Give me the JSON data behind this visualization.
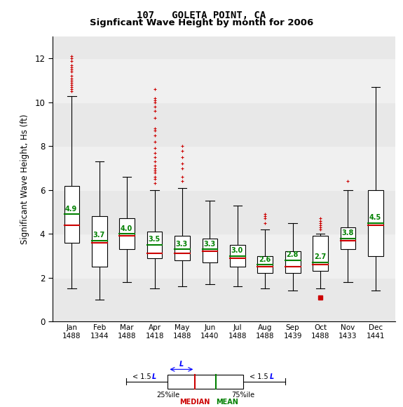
{
  "title1": "107   GOLETA POINT, CA",
  "title2": "Signficant Wave Height by month for 2006",
  "ylabel": "Significant Wave Height, Hs (ft)",
  "months": [
    "Jan",
    "Feb",
    "Mar",
    "Apr",
    "May",
    "Jun",
    "Jul",
    "Aug",
    "Sep",
    "Oct",
    "Nov",
    "Dec"
  ],
  "counts": [
    1488,
    1344,
    1488,
    1418,
    1488,
    1440,
    1488,
    1488,
    1439,
    1488,
    1433,
    1441
  ],
  "ylim": [
    0,
    13
  ],
  "yticks": [
    0,
    2,
    4,
    6,
    8,
    10,
    12
  ],
  "box_data": {
    "Jan": {
      "q1": 3.6,
      "median": 4.4,
      "mean": 4.9,
      "q3": 6.2,
      "whislo": 1.5,
      "whishi": 10.3,
      "fliers_above": [
        10.5,
        10.6,
        10.7,
        10.8,
        10.9,
        11.0,
        11.1,
        11.2,
        11.4,
        11.5,
        11.6,
        11.7,
        11.9,
        12.0,
        12.1
      ],
      "fliers_below": []
    },
    "Feb": {
      "q1": 2.5,
      "median": 3.6,
      "mean": 3.7,
      "q3": 4.8,
      "whislo": 1.0,
      "whishi": 7.3,
      "fliers_above": [],
      "fliers_below": []
    },
    "Mar": {
      "q1": 3.3,
      "median": 3.9,
      "mean": 4.0,
      "q3": 4.7,
      "whislo": 1.8,
      "whishi": 6.6,
      "fliers_above": [],
      "fliers_below": []
    },
    "Apr": {
      "q1": 2.9,
      "median": 3.1,
      "mean": 3.5,
      "q3": 4.1,
      "whislo": 1.5,
      "whishi": 6.0,
      "fliers_above": [
        6.3,
        6.5,
        6.6,
        6.8,
        6.9,
        7.0,
        7.1,
        7.3,
        7.5,
        7.7,
        7.9,
        8.2,
        8.5,
        8.7,
        8.8,
        9.3,
        9.6,
        9.8,
        10.0,
        10.1,
        10.2,
        10.6
      ],
      "fliers_below": []
    },
    "May": {
      "q1": 2.8,
      "median": 3.1,
      "mean": 3.3,
      "q3": 3.9,
      "whislo": 1.6,
      "whishi": 6.1,
      "fliers_above": [
        6.4,
        6.6,
        7.0,
        7.2,
        7.5,
        7.8,
        8.0
      ],
      "fliers_below": []
    },
    "Jun": {
      "q1": 2.7,
      "median": 3.2,
      "mean": 3.3,
      "q3": 3.8,
      "whislo": 1.7,
      "whishi": 5.5,
      "fliers_above": [],
      "fliers_below": []
    },
    "Jul": {
      "q1": 2.5,
      "median": 2.9,
      "mean": 3.0,
      "q3": 3.5,
      "whislo": 1.6,
      "whishi": 5.3,
      "fliers_above": [],
      "fliers_below": []
    },
    "Aug": {
      "q1": 2.2,
      "median": 2.5,
      "mean": 2.6,
      "q3": 3.0,
      "whislo": 1.5,
      "whishi": 4.2,
      "fliers_above": [
        4.5,
        4.7,
        4.8,
        4.9
      ],
      "fliers_below": []
    },
    "Sep": {
      "q1": 2.2,
      "median": 2.5,
      "mean": 2.8,
      "q3": 3.2,
      "whislo": 1.4,
      "whishi": 4.5,
      "fliers_above": [],
      "fliers_below": []
    },
    "Oct": {
      "q1": 2.3,
      "median": 2.6,
      "mean": 2.7,
      "q3": 3.9,
      "whislo": 1.5,
      "whishi": 4.0,
      "fliers_above": [
        4.2,
        4.3,
        4.4,
        4.5,
        4.6,
        4.7
      ],
      "fliers_below": [
        1.1
      ]
    },
    "Nov": {
      "q1": 3.3,
      "median": 3.7,
      "mean": 3.8,
      "q3": 4.3,
      "whislo": 1.8,
      "whishi": 6.0,
      "fliers_above": [
        6.4
      ],
      "fliers_below": []
    },
    "Dec": {
      "q1": 3.0,
      "median": 4.4,
      "mean": 4.5,
      "q3": 6.0,
      "whislo": 1.4,
      "whishi": 10.7,
      "fliers_above": [],
      "fliers_below": []
    }
  },
  "band_colors": [
    "#e8e8e8",
    "#f0f0f0"
  ],
  "median_color": "#cc0000",
  "mean_color": "#008000",
  "box_color": "#000000",
  "flier_color": "#cc0000",
  "whisker_color": "#000000"
}
